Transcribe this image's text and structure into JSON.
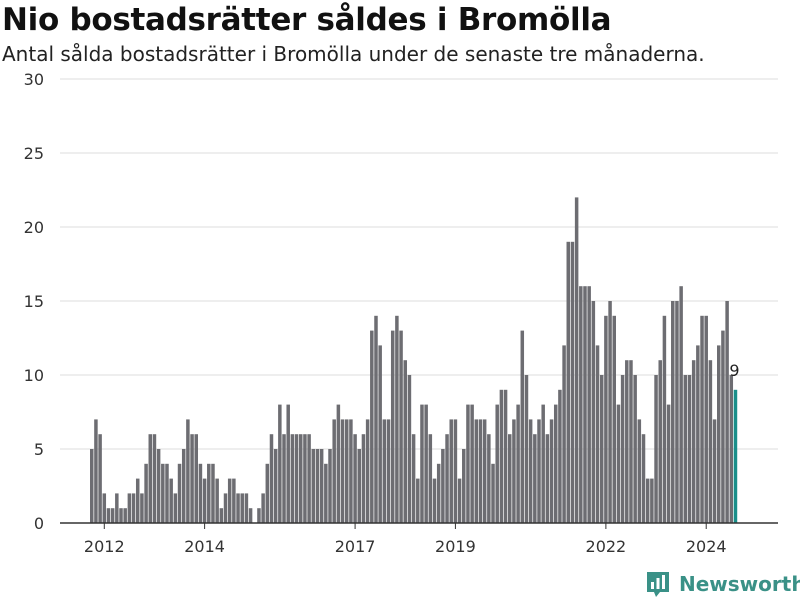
{
  "title": "Nio bostadsrätter såldes i Bromölla",
  "subtitle": "Antal sålda bostadsrätter i Bromölla under de senaste tre månaderna.",
  "brand": {
    "name": "Newsworthy",
    "color": "#3a9187"
  },
  "colors": {
    "bar": "#6d6d72",
    "highlight": "#1a8f8a",
    "grid": "#dddddd",
    "axis": "#333333"
  },
  "chart_data": {
    "type": "bar",
    "title": "Nio bostadsrätter såldes i Bromölla",
    "subtitle": "Antal sålda bostadsrätter i Bromölla under de senaste tre månaderna.",
    "ylim": [
      0,
      30
    ],
    "yticks": [
      0,
      5,
      10,
      15,
      20,
      25,
      30
    ],
    "xticks": [
      "2012",
      "2014",
      "2017",
      "2019",
      "2022",
      "2024"
    ],
    "grid": true,
    "start": "2011-10",
    "x_interval": "month",
    "values": [
      5,
      7,
      6,
      2,
      1,
      1,
      2,
      1,
      1,
      2,
      2,
      3,
      2,
      4,
      6,
      6,
      5,
      4,
      4,
      3,
      2,
      4,
      5,
      7,
      6,
      6,
      4,
      3,
      4,
      4,
      3,
      1,
      2,
      3,
      3,
      2,
      2,
      2,
      1,
      0,
      1,
      2,
      4,
      6,
      5,
      8,
      6,
      8,
      6,
      6,
      6,
      6,
      6,
      5,
      5,
      5,
      4,
      5,
      7,
      8,
      7,
      7,
      7,
      6,
      5,
      6,
      7,
      13,
      14,
      12,
      7,
      7,
      13,
      14,
      13,
      11,
      10,
      6,
      3,
      8,
      8,
      6,
      3,
      4,
      5,
      6,
      7,
      7,
      3,
      5,
      8,
      8,
      7,
      7,
      7,
      6,
      4,
      8,
      9,
      9,
      6,
      7,
      8,
      13,
      10,
      7,
      6,
      7,
      8,
      6,
      7,
      8,
      9,
      12,
      19,
      19,
      22,
      16,
      16,
      16,
      15,
      12,
      10,
      14,
      15,
      14,
      8,
      10,
      11,
      11,
      10,
      7,
      6,
      3,
      3,
      10,
      11,
      14,
      8,
      15,
      15,
      16,
      10,
      10,
      11,
      12,
      14,
      14,
      11,
      7,
      12,
      13,
      15,
      10,
      9
    ],
    "highlight_last": true,
    "annotations": [
      {
        "text": "9"
      }
    ]
  }
}
